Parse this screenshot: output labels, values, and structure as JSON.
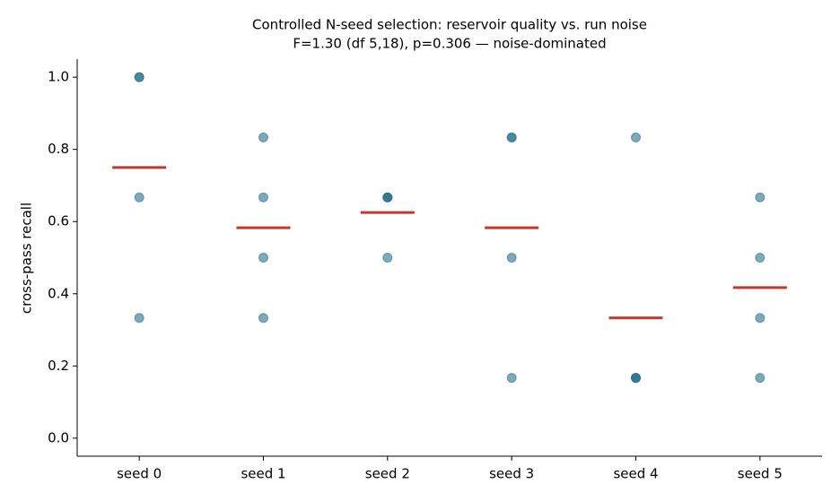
{
  "chart_data": {
    "type": "strip",
    "title": "Controlled N-seed selection: reservoir quality vs. run noise",
    "subtitle": "F=1.30 (df 5,18), p=0.306 — noise-dominated",
    "y_label": "cross-pass recall",
    "categories": [
      "seed 0",
      "seed 1",
      "seed 2",
      "seed 3",
      "seed 4",
      "seed 5"
    ],
    "points": [
      [
        1.0,
        1.0,
        0.667,
        0.333
      ],
      [
        0.833,
        0.667,
        0.5,
        0.333
      ],
      [
        0.667,
        0.667,
        0.667,
        0.5
      ],
      [
        0.833,
        0.833,
        0.5,
        0.167
      ],
      [
        0.833,
        0.167,
        0.167,
        0.167
      ],
      [
        0.667,
        0.5,
        0.333,
        0.167
      ]
    ],
    "means": [
      0.75,
      0.583,
      0.625,
      0.583,
      0.333,
      0.417
    ],
    "point_color": "#2a6f8a",
    "mean_color": "#c0392b",
    "ylim": [
      -0.05,
      1.05
    ],
    "yticks": [
      {
        "value": 0,
        "label": "0.0"
      },
      0.2,
      0.4,
      0.6,
      0.8,
      {
        "value": 1,
        "label": "1.0"
      }
    ]
  }
}
